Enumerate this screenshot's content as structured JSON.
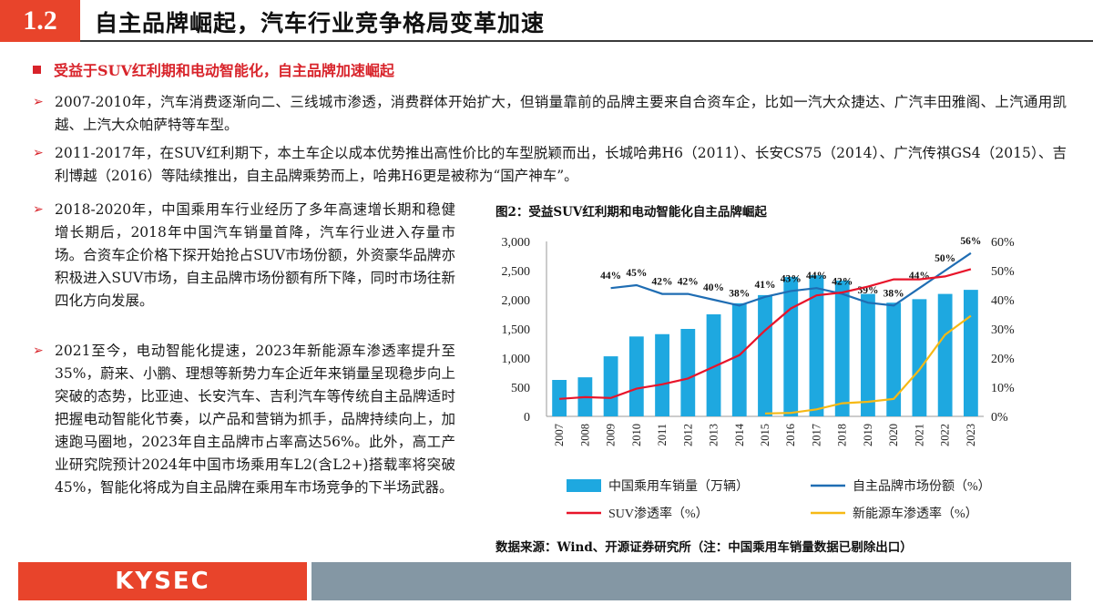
{
  "header": {
    "section_number": "1.2",
    "title": "自主品牌崛起，汽车行业竞争格局变革加速"
  },
  "subhead": "受益于SUV红利期和电动智能化，自主品牌加速崛起",
  "bullets": [
    "2007-2010年，汽车消费逐渐向二、三线城市渗透，消费群体开始扩大，但销量靠前的品牌主要来自合资车企，比如一汽大众捷达、广汽丰田雅阁、上汽通用凯越、上汽大众帕萨特等车型。",
    "2011-2017年，在SUV红利期下，本土车企以成本优势推出高性价比的车型脱颖而出，长城哈弗H6（2011）、长安CS75（2014）、广汽传祺GS4（2015）、吉利博越（2016）等陆续推出，自主品牌乘势而上，哈弗H6更是被称为“国产神车”。",
    "2018-2020年，中国乘用车行业经历了多年高速增长期和稳健增长期后，2018年中国汽车销量首降，汽车行业进入存量市场。合资车企价格下探开始抢占SUV市场份额，外资豪华品牌亦积极进入SUV市场，自主品牌市场份额有所下降，同时市场往新四化方向发展。",
    "2021至今，电动智能化提速，2023年新能源车渗透率提升至35%，蔚来、小鹏、理想等新势力车企近年来销量呈现稳步向上突破的态势，比亚迪、长安汽车、吉利汽车等传统自主品牌适时把握电动智能化节奏，以产品和营销为抓手，品牌持续向上，加速跑马圈地，2023年自主品牌市占率高达56%。此外，高工产业研究院预计2024年中国市场乘用车L2(含L2+)搭载率将突破45%，智能化将成为自主品牌在乘用车市场竞争的下半场武器。"
  ],
  "figure": {
    "title": "图2：受益SUV红利期和电动智能化自主品牌崛起",
    "source": "数据来源：Wind、开源证券研究所（注：中国乘用车销量数据已剔除出口）"
  },
  "chart_data": {
    "type": "bar",
    "categories": [
      "2007",
      "2008",
      "2009",
      "2010",
      "2011",
      "2012",
      "2013",
      "2014",
      "2015",
      "2016",
      "2017",
      "2018",
      "2019",
      "2020",
      "2021",
      "2022",
      "2023"
    ],
    "ylim_left": [
      0,
      3000
    ],
    "yticks_left": [
      "0",
      "500",
      "1,000",
      "1,500",
      "2,000",
      "2,500",
      "3,000"
    ],
    "ylim_right": [
      0,
      0.6
    ],
    "yticks_right": [
      "0%",
      "10%",
      "20%",
      "30%",
      "40%",
      "50%",
      "60%"
    ],
    "grid": false,
    "legend_position": "bottom",
    "series": [
      {
        "name": "中国乘用车销量（万辆）",
        "kind": "bar",
        "axis": "left",
        "color": "#1ea8e0",
        "values": [
          625,
          670,
          1030,
          1370,
          1410,
          1500,
          1750,
          1940,
          2080,
          2390,
          2420,
          2330,
          2100,
          1950,
          2010,
          2100,
          2170
        ]
      },
      {
        "name": "自主品牌市场份额（%）",
        "kind": "line",
        "axis": "right",
        "color": "#1f6db3",
        "values": [
          null,
          null,
          0.44,
          0.45,
          0.42,
          0.42,
          0.4,
          0.38,
          0.41,
          0.43,
          0.44,
          0.42,
          0.39,
          0.38,
          0.44,
          0.5,
          0.56
        ],
        "labels": [
          "",
          "",
          "44%",
          "45%",
          "42%",
          "42%",
          "40%",
          "38%",
          "41%",
          "43%",
          "44%",
          "42%",
          "39%",
          "38%",
          "44%",
          "50%",
          "56%"
        ]
      },
      {
        "name": "SUV渗透率（%）",
        "kind": "line",
        "axis": "right",
        "color": "#e8142a",
        "values": [
          0.06,
          0.066,
          0.063,
          0.095,
          0.11,
          0.13,
          0.17,
          0.21,
          0.295,
          0.37,
          0.415,
          0.425,
          0.445,
          0.47,
          0.47,
          0.48,
          0.505
        ]
      },
      {
        "name": "新能源车渗透率（%）",
        "kind": "line",
        "axis": "right",
        "color": "#f6b915",
        "values": [
          null,
          null,
          null,
          null,
          null,
          null,
          null,
          null,
          0.01,
          0.012,
          0.024,
          0.045,
          0.05,
          0.06,
          0.16,
          0.28,
          0.345
        ]
      }
    ]
  },
  "footer": {
    "logo_text": "KYSEC"
  }
}
